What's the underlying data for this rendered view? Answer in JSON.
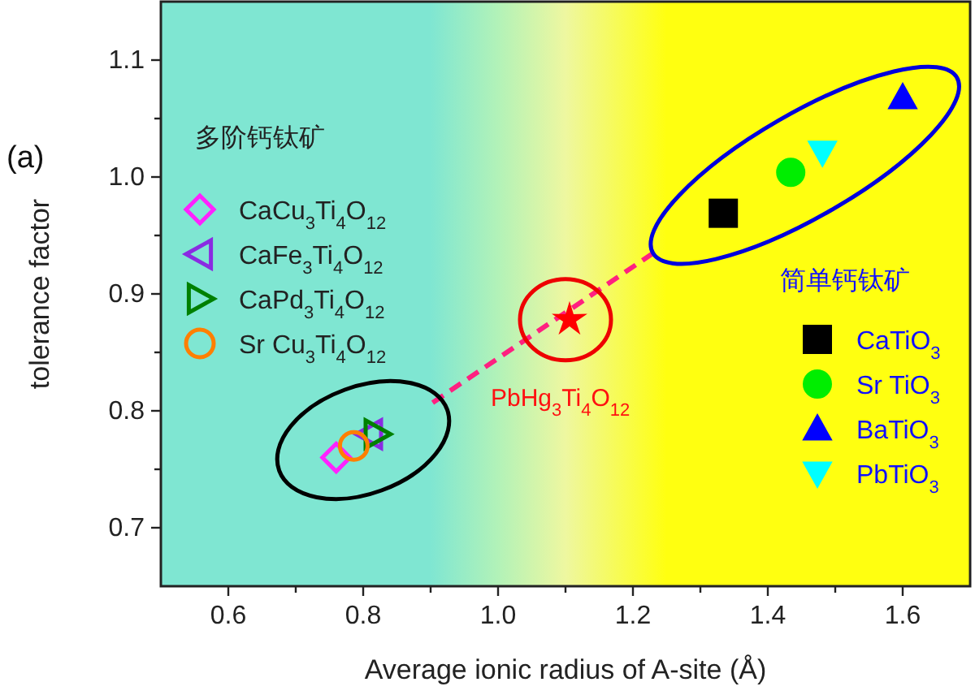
{
  "chart_data": {
    "type": "scatter",
    "xlabel": "Average ionic radius of A-site (Å)",
    "ylabel": "tolerance factor",
    "legend_title": "多阶钙钛矿",
    "legend": "left",
    "xlim": [
      0.5,
      1.7
    ],
    "ylim": [
      0.65,
      1.15
    ],
    "xticks": [
      0.6,
      {
        "value": 0.7,
        "label": null
      },
      0.8,
      {
        "value": 0.9,
        "label": null
      },
      {
        "value": 1,
        "label": "1.0"
      },
      {
        "value": 1.1,
        "label": null
      },
      1.2,
      {
        "value": 1.3,
        "label": null
      },
      1.4,
      {
        "value": 1.5,
        "label": null
      },
      1.6
    ],
    "yticks": [
      0.7,
      {
        "value": 0.75,
        "label": null
      },
      0.8,
      {
        "value": 0.85,
        "label": null
      },
      0.9,
      {
        "value": 0.95,
        "label": null
      },
      {
        "value": 1,
        "label": "1.0"
      },
      {
        "value": 1.05,
        "label": null
      },
      1.1
    ],
    "annotations": [
      "(a)",
      "PbHg$_{3}$Ti$_{4}$O$_{12}$",
      "简单钙钛矿"
    ],
    "series": [
      {
        "type": "line",
        "line_style": "dashed",
        "color": "#ff2080",
        "x": [
          0.903,
          1.238
        ],
        "values": [
          0.807,
          0.938
        ]
      },
      {
        "name": "CaCu$_{3}$Ti$_{4}$O$_{12}$",
        "marker": "diamond-open",
        "color": "#ff22ff",
        "x": [
          0.76
        ],
        "values": [
          0.76
        ]
      },
      {
        "name": "CaFe$_{3}$Ti$_{4}$O$_{12}$",
        "marker": "triangle-left-open",
        "color": "#8a2be2",
        "x": [
          0.81
        ],
        "values": [
          0.78
        ]
      },
      {
        "name": "CaPd$_{3}$Ti$_{4}$O$_{12}$",
        "marker": "triangle-right-open",
        "color": "#008000",
        "x": [
          0.82
        ],
        "values": [
          0.78
        ]
      },
      {
        "name": "Sr Cu$_{3}$Ti$_{4}$O$_{12}$",
        "marker": "circle-open",
        "color": "#ff7f00",
        "x": [
          0.786
        ],
        "values": [
          0.77
        ]
      },
      {
        "marker": "star",
        "color": "#ff0000",
        "x": [
          1.106
        ],
        "values": [
          0.878
        ]
      },
      {
        "name": "CaTiO$_{3}$",
        "marker": "square",
        "color": "#000000",
        "x": [
          1.334
        ],
        "values": [
          0.969
        ]
      },
      {
        "name": "Sr TiO$_{3}$",
        "marker": "circle",
        "color": "#00ee00",
        "x": [
          1.434
        ],
        "values": [
          1.004
        ]
      },
      {
        "name": "BaTiO$_{3}$",
        "marker": "triangle",
        "color": "#0000ff",
        "x": [
          1.6
        ],
        "values": [
          1.068
        ]
      },
      {
        "name": "PbTiO$_{3}$",
        "marker": "triangle-down",
        "color": "#00ffff",
        "x": [
          1.481
        ],
        "values": [
          1.021
        ]
      }
    ]
  }
}
